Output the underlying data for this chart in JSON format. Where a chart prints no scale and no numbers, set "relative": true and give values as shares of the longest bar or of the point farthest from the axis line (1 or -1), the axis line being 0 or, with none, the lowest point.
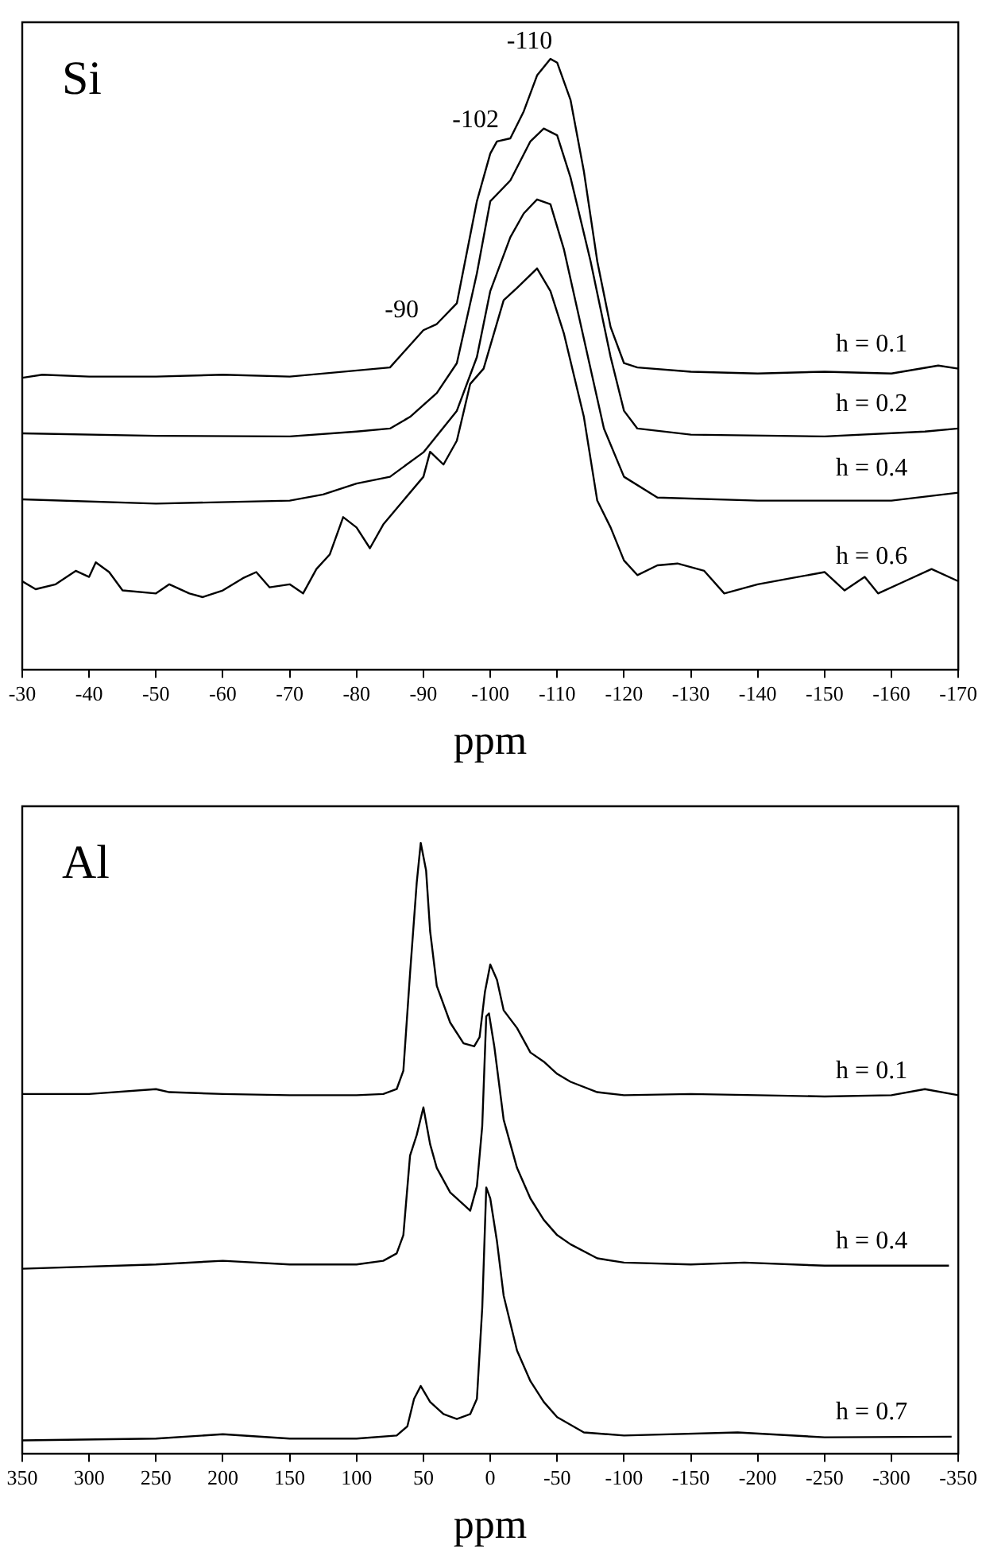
{
  "chart_data": [
    {
      "type": "line",
      "title": "Si",
      "xlabel": "ppm",
      "relative": true,
      "xlim": [
        -30,
        -170
      ],
      "xticks": [
        -30,
        -40,
        -50,
        -60,
        -70,
        -80,
        -90,
        -100,
        -110,
        -120,
        -130,
        -140,
        -150,
        -160,
        -170
      ],
      "legend": false,
      "marker": "none",
      "line_style": "solid",
      "annotations": [
        {
          "text": "-90",
          "x": -90,
          "y": 0.56
        },
        {
          "text": "-102",
          "x": -102,
          "y": 0.87
        },
        {
          "text": "-110",
          "x": -110,
          "y": 1
        }
      ],
      "series": [
        {
          "name": "h = 0.1",
          "color": "#000000",
          "x": [
            -30,
            -33,
            -40,
            -50,
            -60,
            -70,
            -85,
            -90,
            -92,
            -95,
            -98,
            -100,
            -101,
            -103,
            -105,
            -107,
            -109,
            -110,
            -112,
            -114,
            -116,
            -118,
            -120,
            -122,
            -130,
            -140,
            -150,
            -160,
            -167,
            -170
          ],
          "values": [
            0.478,
            0.483,
            0.48,
            0.48,
            0.483,
            0.48,
            0.495,
            0.556,
            0.566,
            0.6,
            0.767,
            0.845,
            0.865,
            0.87,
            0.914,
            0.973,
            1,
            0.994,
            0.933,
            0.816,
            0.669,
            0.561,
            0.502,
            0.495,
            0.488,
            0.485,
            0.488,
            0.485,
            0.498,
            0.493
          ]
        },
        {
          "name": "h = 0.2",
          "color": "#000000",
          "x": [
            -30,
            -50,
            -70,
            -80,
            -85,
            -88,
            -92,
            -95,
            -98,
            -100,
            -103,
            -106,
            -108,
            -110,
            -112,
            -115,
            -118,
            -120,
            -122,
            -130,
            -150,
            -165,
            -170
          ],
          "values": [
            0.387,
            0.383,
            0.382,
            0.39,
            0.395,
            0.414,
            0.453,
            0.502,
            0.649,
            0.767,
            0.801,
            0.865,
            0.886,
            0.875,
            0.806,
            0.669,
            0.512,
            0.424,
            0.395,
            0.385,
            0.382,
            0.39,
            0.395
          ]
        },
        {
          "name": "h = 0.4",
          "color": "#000000",
          "x": [
            -30,
            -50,
            -70,
            -75,
            -80,
            -85,
            -90,
            -95,
            -98,
            -100,
            -103,
            -105,
            -107,
            -109,
            -111,
            -114,
            -117,
            -120,
            -125,
            -140,
            -160,
            -170
          ],
          "values": [
            0.279,
            0.272,
            0.277,
            0.287,
            0.305,
            0.316,
            0.356,
            0.424,
            0.512,
            0.62,
            0.708,
            0.747,
            0.77,
            0.762,
            0.689,
            0.542,
            0.395,
            0.316,
            0.282,
            0.277,
            0.277,
            0.29
          ]
        },
        {
          "name": "h = 0.6",
          "color": "#000000",
          "x": [
            -30,
            -32,
            -35,
            -38,
            -40,
            -41,
            -43,
            -45,
            -50,
            -52,
            -55,
            -57,
            -60,
            -63,
            -65,
            -67,
            -70,
            -72,
            -74,
            -76,
            -78,
            -80,
            -82,
            -84,
            -87,
            -90,
            -91,
            -93,
            -95,
            -97,
            -99,
            -102,
            -104,
            -107,
            -109,
            -111,
            -114,
            -116,
            -118,
            -120,
            -122,
            -125,
            -128,
            -132,
            -135,
            -140,
            -145,
            -150,
            -153,
            -156,
            -158,
            -162,
            -166,
            -170
          ],
          "values": [
            0.145,
            0.132,
            0.14,
            0.162,
            0.152,
            0.176,
            0.16,
            0.13,
            0.125,
            0.14,
            0.125,
            0.119,
            0.13,
            0.15,
            0.16,
            0.135,
            0.14,
            0.125,
            0.165,
            0.189,
            0.25,
            0.233,
            0.199,
            0.238,
            0.277,
            0.316,
            0.357,
            0.336,
            0.375,
            0.468,
            0.493,
            0.605,
            0.625,
            0.657,
            0.62,
            0.551,
            0.414,
            0.277,
            0.233,
            0.179,
            0.155,
            0.171,
            0.174,
            0.162,
            0.125,
            0.14,
            0.15,
            0.16,
            0.13,
            0.152,
            0.125,
            0.145,
            0.165,
            0.145
          ]
        }
      ]
    },
    {
      "type": "line",
      "title": "Al",
      "xlabel": "ppm",
      "relative": true,
      "xlim": [
        350,
        -350
      ],
      "xticks": [
        350,
        300,
        250,
        200,
        150,
        100,
        50,
        0,
        -50,
        -100,
        -150,
        -200,
        -250,
        -300,
        -350
      ],
      "legend": false,
      "marker": "none",
      "line_style": "solid",
      "series": [
        {
          "name": "h = 0.1",
          "color": "#000000",
          "x": [
            350,
            300,
            250,
            240,
            200,
            150,
            100,
            80,
            70,
            65,
            60,
            55,
            52,
            48,
            45,
            40,
            30,
            20,
            12,
            8,
            4,
            0,
            -5,
            -10,
            -20,
            -30,
            -40,
            -50,
            -60,
            -80,
            -100,
            -150,
            -200,
            -250,
            -300,
            -325,
            -350
          ],
          "values": [
            0.589,
            0.589,
            0.597,
            0.592,
            0.589,
            0.587,
            0.587,
            0.589,
            0.597,
            0.627,
            0.786,
            0.935,
            1,
            0.955,
            0.856,
            0.766,
            0.706,
            0.672,
            0.667,
            0.682,
            0.756,
            0.801,
            0.776,
            0.726,
            0.697,
            0.657,
            0.642,
            0.622,
            0.609,
            0.592,
            0.587,
            0.589,
            0.587,
            0.585,
            0.587,
            0.597,
            0.587
          ]
        },
        {
          "name": "h = 0.4",
          "color": "#000000",
          "x": [
            350,
            250,
            200,
            150,
            100,
            80,
            70,
            65,
            60,
            55,
            50,
            45,
            40,
            30,
            20,
            15,
            10,
            6,
            3,
            1,
            -3,
            -10,
            -20,
            -30,
            -40,
            -50,
            -60,
            -80,
            -100,
            -150,
            -190,
            -250,
            -343
          ],
          "values": [
            0.303,
            0.31,
            0.316,
            0.31,
            0.31,
            0.316,
            0.328,
            0.358,
            0.488,
            0.522,
            0.567,
            0.507,
            0.468,
            0.428,
            0.408,
            0.398,
            0.438,
            0.537,
            0.716,
            0.721,
            0.667,
            0.547,
            0.468,
            0.418,
            0.383,
            0.358,
            0.343,
            0.32,
            0.313,
            0.31,
            0.313,
            0.308,
            0.308
          ]
        },
        {
          "name": "h = 0.7",
          "color": "#000000",
          "x": [
            350,
            250,
            200,
            150,
            100,
            70,
            62,
            57,
            52,
            45,
            35,
            25,
            15,
            10,
            6,
            3,
            0,
            -5,
            -10,
            -20,
            -30,
            -40,
            -50,
            -70,
            -100,
            -185,
            -250,
            -345
          ],
          "values": [
            0.022,
            0.025,
            0.032,
            0.025,
            0.025,
            0.03,
            0.045,
            0.09,
            0.111,
            0.085,
            0.065,
            0.057,
            0.065,
            0.09,
            0.239,
            0.436,
            0.418,
            0.348,
            0.259,
            0.169,
            0.119,
            0.085,
            0.06,
            0.035,
            0.03,
            0.035,
            0.027,
            0.028
          ]
        }
      ]
    }
  ]
}
